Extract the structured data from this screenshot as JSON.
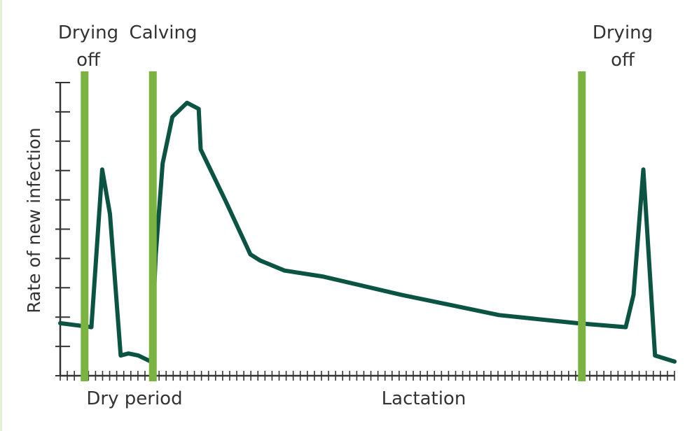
{
  "chart_data": {
    "type": "line",
    "title": "",
    "ylabel": "Rate of new infection",
    "xlabel": "",
    "period_labels": [
      "Dry period",
      "Lactation"
    ],
    "markers": [
      {
        "line1": "Drying",
        "line2": "off"
      },
      {
        "line1": "Calving",
        "line2": ""
      },
      {
        "line1": "Drying",
        "line2": "off"
      }
    ],
    "series": [
      {
        "points": [
          [
            0,
            2.6
          ],
          [
            3.2,
            2.4
          ],
          [
            4.3,
            10.2
          ],
          [
            5.1,
            8.0
          ],
          [
            6.2,
            1.0
          ],
          [
            7.0,
            1.1
          ],
          [
            8.0,
            1.0
          ],
          [
            9.3,
            0.7
          ],
          [
            9.8,
            6.0
          ],
          [
            10.5,
            10.5
          ],
          [
            11.5,
            12.8
          ],
          [
            13.0,
            13.5
          ],
          [
            14.2,
            13.2
          ],
          [
            14.4,
            11.2
          ],
          [
            17.0,
            8.6
          ],
          [
            19.5,
            6.0
          ],
          [
            20.5,
            5.7
          ],
          [
            23.0,
            5.2
          ],
          [
            27.0,
            4.9
          ],
          [
            35.0,
            4.0
          ],
          [
            45.0,
            3.0
          ],
          [
            53.0,
            2.6
          ],
          [
            58.0,
            2.4
          ],
          [
            58.8,
            4.0
          ],
          [
            59.8,
            10.2
          ],
          [
            61.0,
            1.0
          ],
          [
            63.0,
            0.7
          ]
        ],
        "color": "#0b5443"
      }
    ],
    "marker_x": [
      2.5,
      9.5,
      53.5
    ],
    "marker_color": "#7ab342",
    "xlim": [
      0,
      63
    ],
    "ylim": [
      0,
      14.5
    ],
    "y_tick_count": 11,
    "x_tick_count": 88,
    "grid": false
  }
}
